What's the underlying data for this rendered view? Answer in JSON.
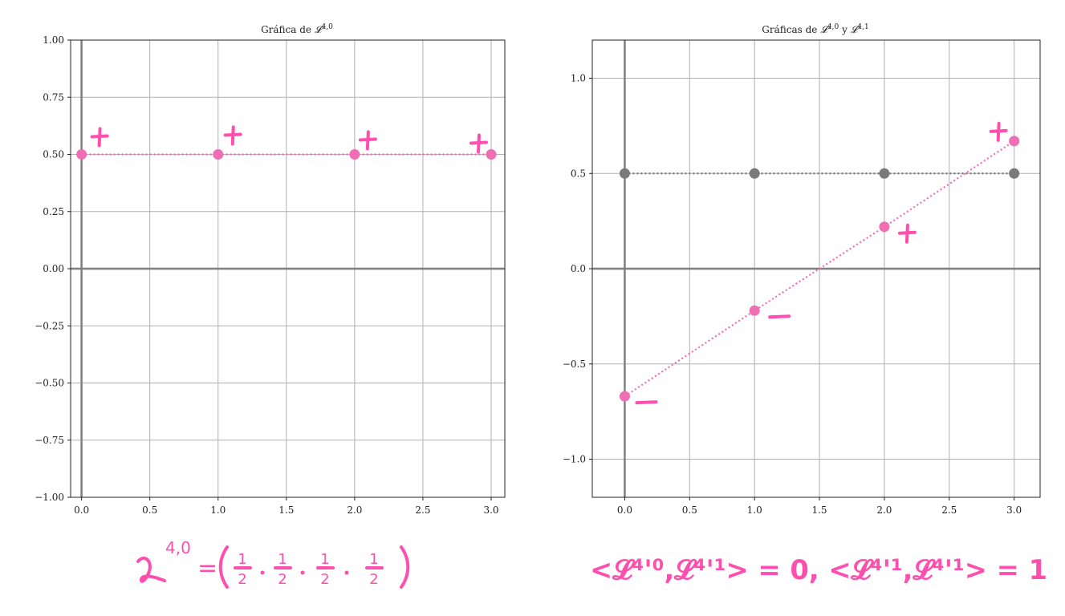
{
  "chart_data": [
    {
      "type": "scatter",
      "title_prefix": "Gráfica de ",
      "title_sup": "4,0",
      "xlim": [
        -0.08,
        3.1
      ],
      "ylim": [
        -1.0,
        1.0
      ],
      "xticks": [
        0.0,
        0.5,
        1.0,
        1.5,
        2.0,
        2.5,
        3.0
      ],
      "xtick_labels": [
        "0.0",
        "0.5",
        "1.0",
        "1.5",
        "2.0",
        "2.5",
        "3.0"
      ],
      "yticks": [
        -1.0,
        -0.75,
        -0.5,
        -0.25,
        0.0,
        0.25,
        0.5,
        0.75,
        1.0
      ],
      "ytick_labels": [
        "−1.00",
        "−0.75",
        "−0.50",
        "−0.25",
        "0.00",
        "0.25",
        "0.50",
        "0.75",
        "1.00"
      ],
      "grid": true,
      "series": [
        {
          "x": [
            0,
            1,
            2,
            3
          ],
          "y": [
            0.5,
            0.5,
            0.5,
            0.5
          ],
          "color": "#f06eb3",
          "style": "dotted-with-markers"
        }
      ],
      "annotations": [
        "+",
        "+",
        "+",
        "+"
      ],
      "annotation_color": "#ff4fae"
    },
    {
      "type": "scatter",
      "title_prefix": "Gráficas de ",
      "title_sup": "4,0",
      "title_mid": " y ",
      "title_sup2": "4,1",
      "xlim": [
        -0.25,
        3.2
      ],
      "ylim": [
        -1.2,
        1.2
      ],
      "xticks": [
        0.0,
        0.5,
        1.0,
        1.5,
        2.0,
        2.5,
        3.0
      ],
      "xtick_labels": [
        "0.0",
        "0.5",
        "1.0",
        "1.5",
        "2.0",
        "2.5",
        "3.0"
      ],
      "yticks": [
        -1.0,
        -0.5,
        0.0,
        0.5,
        1.0
      ],
      "ytick_labels": [
        "−1.0",
        "−0.5",
        "0.0",
        "0.5",
        "1.0"
      ],
      "grid": true,
      "series": [
        {
          "x": [
            0,
            1,
            2,
            3
          ],
          "y": [
            0.5,
            0.5,
            0.5,
            0.5
          ],
          "color": "#7a7a7a",
          "style": "dotted-with-markers"
        },
        {
          "x": [
            0,
            1,
            2,
            3
          ],
          "y": [
            -0.67,
            -0.22,
            0.22,
            0.67
          ],
          "color": "#f06eb3",
          "style": "dotted-with-markers"
        }
      ],
      "annotations": [
        "−",
        "−",
        "+",
        "+"
      ],
      "annotation_color": "#ff4fae"
    }
  ],
  "handwriting": {
    "left": {
      "symbol": "𝓛",
      "sup": "4,0",
      "eq": "=",
      "fractions": [
        "1",
        "2"
      ],
      "tuple_note": "( 1/2 · 1/2 · 1/2 · 1/2 )"
    },
    "right": {
      "text": "<𝓛⁴'⁰,𝓛⁴'¹> = 0, <𝓛⁴'¹,𝓛⁴'¹> = 1"
    }
  },
  "colors": {
    "pink": "#f06eb3",
    "ink": "#ff4fae",
    "gray": "#7a7a7a",
    "grid": "#b0b0b0",
    "axis": "#7f7f7f"
  }
}
